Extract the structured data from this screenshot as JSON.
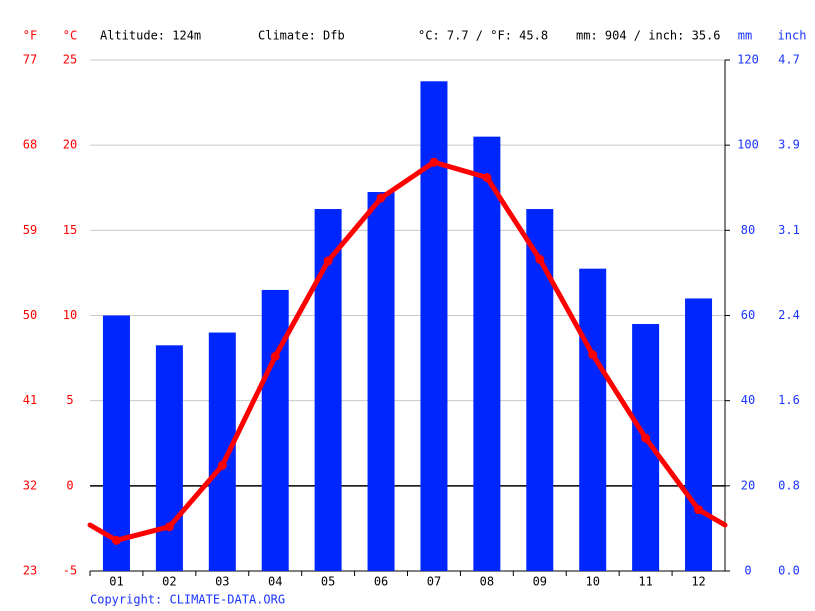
{
  "chart_data": {
    "type": "climate",
    "ylabel": "°C",
    "y3label": "°F",
    "y2label": "mm",
    "y4label": "inch",
    "annotations": [
      "Altitude: 124m",
      "Climate: Dfb",
      "°C: 7.7 / °F: 45.8",
      "mm: 904 / inch: 35.6"
    ],
    "footer": "Copyright: CLIMATE-DATA.ORG",
    "categories": [
      "01",
      "02",
      "03",
      "04",
      "05",
      "06",
      "07",
      "08",
      "09",
      "10",
      "11",
      "12"
    ],
    "series": [
      {
        "type": "bar",
        "axis": "y2",
        "color": "#0026ff",
        "values": [
          60,
          53,
          56,
          66,
          85,
          89,
          115,
          102,
          85,
          71,
          58,
          64
        ]
      },
      {
        "type": "line",
        "axis": "y",
        "color": "#ff0000",
        "values": [
          -3.2,
          -2.4,
          1.2,
          7.6,
          13.2,
          16.9,
          19.0,
          18.1,
          13.3,
          7.7,
          2.8,
          -1.4
        ]
      }
    ],
    "ylim": [
      -5,
      25
    ],
    "yticks": [
      -5,
      0,
      5,
      10,
      15,
      20,
      25
    ],
    "y3lim": [
      23,
      77
    ],
    "y3ticks": [
      23,
      32,
      41,
      50,
      59,
      68,
      77
    ],
    "y2lim": [
      0,
      120
    ],
    "y2ticks": [
      0,
      20,
      40,
      60,
      80,
      100,
      120
    ],
    "y4lim": [
      0,
      4.724
    ],
    "y4ticks": [
      {
        "value": 0,
        "label": "0.0"
      },
      {
        "value": 0.787,
        "label": "0.8"
      },
      {
        "value": 1.575,
        "label": "1.6"
      },
      {
        "value": 2.362,
        "label": "2.4"
      },
      {
        "value": 3.1496,
        "label": "3.1"
      },
      {
        "value": 3.937,
        "label": "3.9"
      },
      {
        "value": 4.724,
        "label": "4.7"
      }
    ],
    "grid": true
  }
}
